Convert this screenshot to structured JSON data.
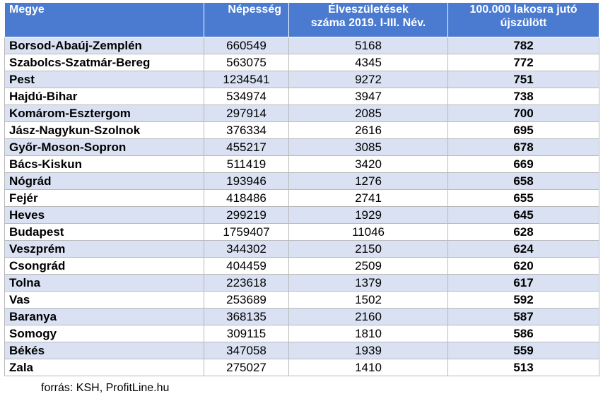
{
  "table": {
    "headers": {
      "county": "Megye",
      "population": "Népesség",
      "births_line1": "Élveszületések",
      "births_line2": "száma 2019. I-III. Név.",
      "rate_line1": "100.000 lakosra jutó",
      "rate_line2": "újszülött"
    },
    "rows": [
      {
        "county": "Borsod-Abaúj-Zemplén",
        "population": "660549",
        "births": "5168",
        "rate": "782"
      },
      {
        "county": "Szabolcs-Szatmár-Bereg",
        "population": "563075",
        "births": "4345",
        "rate": "772"
      },
      {
        "county": "Pest",
        "population": "1234541",
        "births": "9272",
        "rate": "751"
      },
      {
        "county": "Hajdú-Bihar",
        "population": "534974",
        "births": "3947",
        "rate": "738"
      },
      {
        "county": "Komárom-Esztergom",
        "population": "297914",
        "births": "2085",
        "rate": "700"
      },
      {
        "county": "Jász-Nagykun-Szolnok",
        "population": "376334",
        "births": "2616",
        "rate": "695"
      },
      {
        "county": "Győr-Moson-Sopron",
        "population": "455217",
        "births": "3085",
        "rate": "678"
      },
      {
        "county": "Bács-Kiskun",
        "population": "511419",
        "births": "3420",
        "rate": "669"
      },
      {
        "county": "Nógrád",
        "population": "193946",
        "births": "1276",
        "rate": "658"
      },
      {
        "county": "Fejér",
        "population": "418486",
        "births": "2741",
        "rate": "655"
      },
      {
        "county": "Heves",
        "population": "299219",
        "births": "1929",
        "rate": "645"
      },
      {
        "county": "Budapest",
        "population": "1759407",
        "births": "11046",
        "rate": "628"
      },
      {
        "county": "Veszprém",
        "population": "344302",
        "births": "2150",
        "rate": "624"
      },
      {
        "county": "Csongrád",
        "population": "404459",
        "births": "2509",
        "rate": "620"
      },
      {
        "county": "Tolna",
        "population": "223618",
        "births": "1379",
        "rate": "617"
      },
      {
        "county": "Vas",
        "population": "253689",
        "births": "1502",
        "rate": "592"
      },
      {
        "county": "Baranya",
        "population": "368135",
        "births": "2160",
        "rate": "587"
      },
      {
        "county": "Somogy",
        "population": "309115",
        "births": "1810",
        "rate": "586"
      },
      {
        "county": "Békés",
        "population": "347058",
        "births": "1939",
        "rate": "559"
      },
      {
        "county": "Zala",
        "population": "275027",
        "births": "1410",
        "rate": "513"
      }
    ]
  },
  "source": "forrás: KSH, ProfitLine.hu"
}
